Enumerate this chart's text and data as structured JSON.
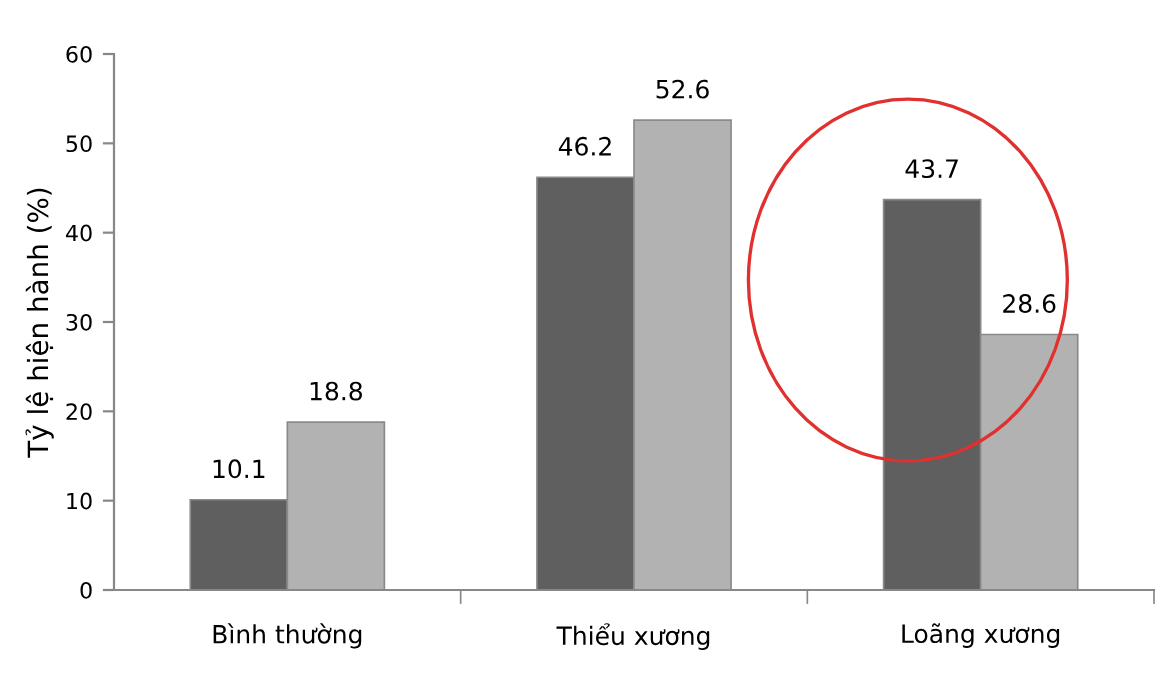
{
  "chart_data": {
    "type": "bar",
    "ylabel": "Tỷ lệ hiện hành (%)",
    "categories": [
      "Bình thường",
      "Thiểu xương",
      "Loãng xương"
    ],
    "series": [
      {
        "color": "#5f5f5f",
        "values": [
          10.1,
          46.2,
          43.7
        ]
      },
      {
        "color": "#b2b2b2",
        "values": [
          18.8,
          52.6,
          28.6
        ]
      }
    ],
    "ylim": [
      0,
      60
    ],
    "yticks": [
      0,
      10,
      20,
      30,
      40,
      50,
      60
    ],
    "grid": false,
    "legend": false,
    "data_labels": true
  }
}
